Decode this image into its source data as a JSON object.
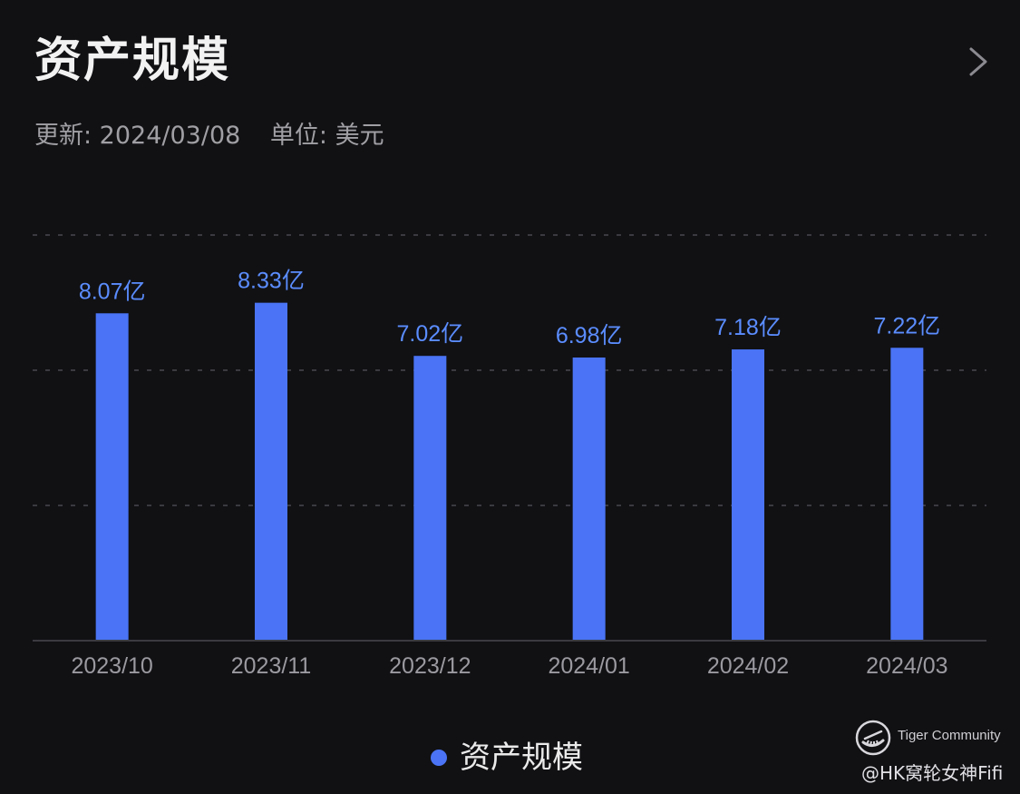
{
  "header": {
    "title": "资产规模",
    "updated": "更新: 2024/03/08",
    "unit": "单位: 美元"
  },
  "chart_data": {
    "type": "bar",
    "title": "资产规模",
    "categories": [
      "2023/10",
      "2023/11",
      "2023/12",
      "2024/01",
      "2024/02",
      "2024/03"
    ],
    "series": [
      {
        "name": "资产规模",
        "values": [
          8.07,
          8.33,
          7.02,
          6.98,
          7.18,
          7.22
        ],
        "labels": [
          "8.07亿",
          "8.33亿",
          "7.02亿",
          "6.98亿",
          "7.18亿",
          "7.22亿"
        ]
      }
    ],
    "unit": "亿",
    "ylim": [
      0,
      10
    ],
    "grid": true,
    "legend": "bottom-center",
    "bar_color": "#4a74f5",
    "label_color": "#5b8dff"
  },
  "legend": {
    "label": "资产规模"
  },
  "watermark": {
    "brand": "Tiger Community",
    "handle": "@HK窝轮女神Fifi"
  },
  "icons": {
    "chevron": "chevron-right-icon",
    "logo": "tiger-community-logo-icon"
  }
}
